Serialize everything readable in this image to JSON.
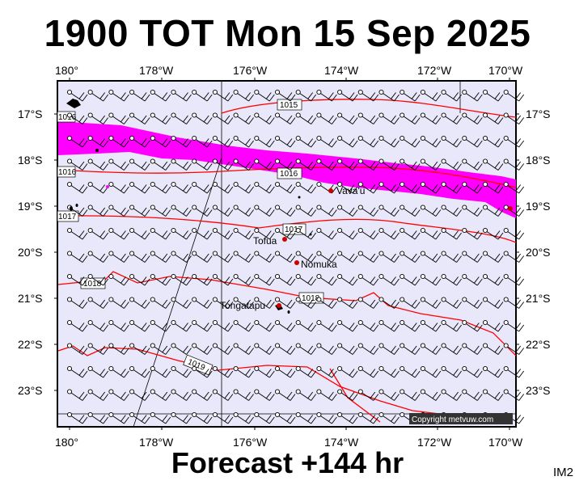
{
  "header": {
    "title": "1900 TOT Mon 15 Sep 2025"
  },
  "footer": {
    "subtitle": "Forecast +144 hr",
    "image_id": "IM2"
  },
  "copyright": "Copyright metvuw.com",
  "colors": {
    "ocean": "#e8e8fa",
    "rain": "#ff00ff",
    "isobar": "#ff0000",
    "land": "#000000",
    "place_dot": "#cc0000"
  },
  "axes": {
    "lon_labels": [
      "180°",
      "178°W",
      "176°W",
      "174°W",
      "172°W",
      "170°W"
    ],
    "lat_labels": [
      "17°S",
      "18°S",
      "19°S",
      "20°S",
      "21°S",
      "22°S",
      "23°S"
    ]
  },
  "places": [
    {
      "name": "Vava'u"
    },
    {
      "name": "Tofua"
    },
    {
      "name": "Nomuka"
    },
    {
      "name": "Tongatapu"
    }
  ],
  "isobars": [
    {
      "label": "1015"
    },
    {
      "label": "1016"
    },
    {
      "label": "1016"
    },
    {
      "label": "1017"
    },
    {
      "label": "1017"
    },
    {
      "label": "1018"
    },
    {
      "label": "1018"
    },
    {
      "label": "1019"
    },
    {
      "label": "1016"
    }
  ],
  "wind": {
    "icon": "wind-barb-icon",
    "direction": "from south-east"
  }
}
